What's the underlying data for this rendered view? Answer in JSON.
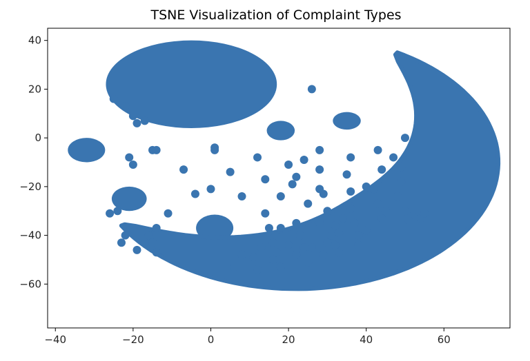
{
  "chart_data": {
    "type": "scatter",
    "title": "TSNE Visualization of Complaint Types",
    "xlabel": "",
    "ylabel": "",
    "xlim": [
      -42,
      77
    ],
    "ylim": [
      -78,
      45
    ],
    "xticks": [
      -40,
      -20,
      0,
      20,
      40,
      60
    ],
    "yticks": [
      40,
      20,
      0,
      -20,
      -40,
      -60
    ],
    "grid": false,
    "marker_color": "#3a75b0",
    "clusters": [
      {
        "shape": "ellipse",
        "cx": -5,
        "cy": 22,
        "rx": 22,
        "ry": 18
      },
      {
        "shape": "ellipse",
        "cx": -32,
        "cy": -5,
        "rx": 4.8,
        "ry": 5
      },
      {
        "shape": "ellipse",
        "cx": -21,
        "cy": -25,
        "rx": 4.5,
        "ry": 5
      },
      {
        "shape": "ellipse",
        "cx": 1,
        "cy": -37,
        "rx": 4.8,
        "ry": 5.5
      },
      {
        "shape": "ellipse",
        "cx": 18,
        "cy": 3,
        "rx": 3.6,
        "ry": 4
      },
      {
        "shape": "ellipse",
        "cx": 35,
        "cy": 7,
        "rx": 3.6,
        "ry": 3.6
      },
      {
        "shape": "crescent",
        "cx": 22,
        "cy": -10,
        "r_outer": 52,
        "start_deg": 210,
        "end_deg": 420,
        "width_mid": 30
      }
    ],
    "points": [
      [
        -25,
        16
      ],
      [
        -22,
        13
      ],
      [
        -20,
        9
      ],
      [
        -19,
        6
      ],
      [
        -17,
        7
      ],
      [
        26,
        20
      ],
      [
        -21,
        -8
      ],
      [
        -20,
        -11
      ],
      [
        -15,
        -5
      ],
      [
        -14,
        -5
      ],
      [
        -7,
        -13
      ],
      [
        1,
        -4
      ],
      [
        1,
        -5
      ],
      [
        5,
        -14
      ],
      [
        -4,
        -23
      ],
      [
        0,
        -21
      ],
      [
        -11,
        -31
      ],
      [
        -26,
        -31
      ],
      [
        -24,
        -30
      ],
      [
        -22,
        -40
      ],
      [
        -23,
        -43
      ],
      [
        -16,
        -40
      ],
      [
        -14,
        -37
      ],
      [
        -17,
        -43
      ],
      [
        -19,
        -46
      ],
      [
        -15,
        -43
      ],
      [
        -14,
        -47
      ],
      [
        8,
        -24
      ],
      [
        12,
        -8
      ],
      [
        14,
        -17
      ],
      [
        14,
        -31
      ],
      [
        15,
        -37
      ],
      [
        13,
        -45
      ],
      [
        11,
        -49
      ],
      [
        12,
        -54
      ],
      [
        16,
        -50
      ],
      [
        16,
        -43
      ],
      [
        17,
        -47
      ],
      [
        18,
        -53
      ],
      [
        18,
        -37
      ],
      [
        18,
        -24
      ],
      [
        20,
        -11
      ],
      [
        21,
        -19
      ],
      [
        22,
        -35
      ],
      [
        22,
        -48
      ],
      [
        24,
        -45
      ],
      [
        23,
        -40
      ],
      [
        25,
        -51
      ],
      [
        25,
        -27
      ],
      [
        26,
        -45
      ],
      [
        28,
        -5
      ],
      [
        28,
        -13
      ],
      [
        28,
        -21
      ],
      [
        28,
        -35
      ],
      [
        29,
        -48
      ],
      [
        30,
        -30
      ],
      [
        31,
        -40
      ],
      [
        32,
        -44
      ],
      [
        32,
        -36
      ],
      [
        34,
        -33
      ],
      [
        33,
        -47
      ],
      [
        35,
        -15
      ],
      [
        36,
        -22
      ],
      [
        36,
        -8
      ],
      [
        36,
        -29
      ],
      [
        37,
        -35
      ],
      [
        38,
        -44
      ],
      [
        40,
        -38
      ],
      [
        42,
        -21
      ],
      [
        43,
        -27
      ],
      [
        43,
        -5
      ],
      [
        44,
        -13
      ],
      [
        44,
        -33
      ],
      [
        48,
        -24
      ],
      [
        49,
        -18
      ],
      [
        49,
        -12
      ],
      [
        50,
        0
      ],
      [
        6,
        -53
      ],
      [
        8,
        -48
      ],
      [
        20,
        -44
      ],
      [
        22,
        -16
      ],
      [
        24,
        -9
      ],
      [
        29,
        -23
      ],
      [
        30,
        -43
      ],
      [
        33,
        -39
      ],
      [
        38,
        -40
      ],
      [
        40,
        -20
      ],
      [
        45,
        -30
      ],
      [
        47,
        -8
      ],
      [
        50,
        -30
      ],
      [
        52,
        -32
      ],
      [
        54,
        -33
      ],
      [
        55,
        -31
      ],
      [
        51,
        -34
      ]
    ]
  }
}
